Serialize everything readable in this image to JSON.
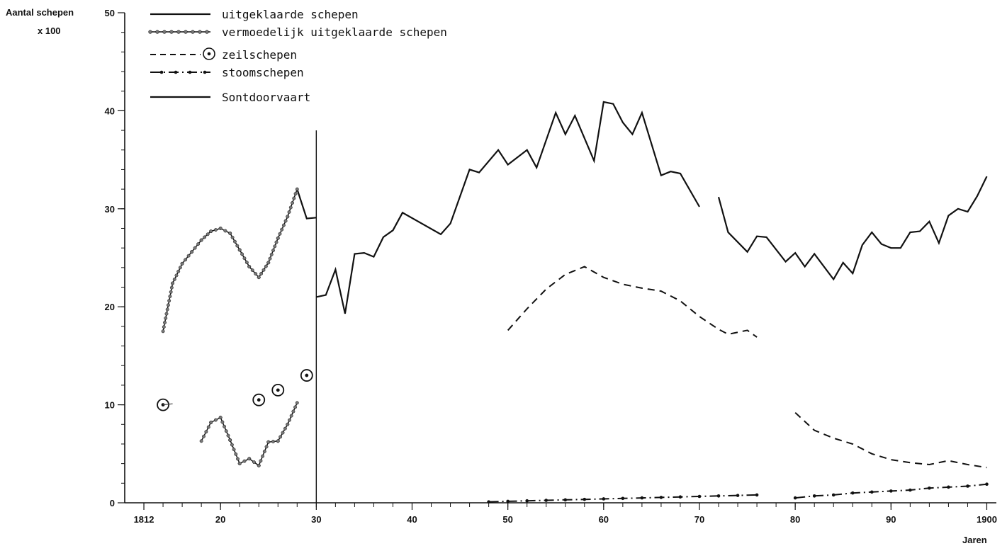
{
  "chart_data": {
    "type": "line",
    "ylabel": "Aantal schepen",
    "ylabel2": "x 100",
    "xlabel": "Jaren",
    "xlim": [
      1810,
      1901
    ],
    "ylim": [
      0,
      50
    ],
    "xticks": [
      1812,
      1820,
      1830,
      1840,
      1850,
      1860,
      1870,
      1880,
      1890,
      1900
    ],
    "xtick_labels": [
      "1812",
      "20",
      "30",
      "40",
      "50",
      "60",
      "70",
      "80",
      "90",
      "1900"
    ],
    "yticks": [
      0,
      10,
      20,
      30,
      40,
      50
    ],
    "ytick_labels": [
      "0",
      "10",
      "20",
      "30",
      "40",
      "50"
    ],
    "legend": [
      {
        "label": "uitgeklaarde schepen",
        "style": "solid"
      },
      {
        "label": "vermoedelijk uitgeklaarde schepen",
        "style": "dotted-solid"
      },
      {
        "label": "zeilschepen",
        "style": "dashed-circle"
      },
      {
        "label": "stoomschepen",
        "style": "dash-dot"
      },
      {
        "label": "Sontdoorvaart",
        "style": "solid"
      }
    ],
    "series": [
      {
        "name": "uitgeklaarde schepen",
        "style": "solid",
        "segments": [
          [
            [
              1828.0,
              32.0
            ],
            [
              1829.0,
              29.0
            ],
            [
              1830.0,
              29.1
            ]
          ],
          [
            [
              1830.0,
              21.0
            ],
            [
              1831.0,
              21.2
            ],
            [
              1832.0,
              23.8
            ],
            [
              1833.0,
              19.3
            ],
            [
              1834.0,
              25.4
            ],
            [
              1835.0,
              25.5
            ],
            [
              1836.0,
              25.1
            ],
            [
              1837.0,
              27.1
            ],
            [
              1838.0,
              27.8
            ],
            [
              1839.0,
              29.6
            ],
            [
              1843.0,
              27.4
            ],
            [
              1844.0,
              28.5
            ],
            [
              1846.0,
              34.0
            ],
            [
              1847.0,
              33.7
            ],
            [
              1849.0,
              36.0
            ],
            [
              1850.0,
              34.5
            ],
            [
              1852.0,
              36.0
            ],
            [
              1853.0,
              34.2
            ],
            [
              1855.0,
              39.8
            ],
            [
              1856.0,
              37.6
            ],
            [
              1857.0,
              39.5
            ],
            [
              1859.0,
              34.9
            ],
            [
              1860.0,
              40.9
            ],
            [
              1861.0,
              40.7
            ],
            [
              1862.0,
              38.8
            ],
            [
              1863.0,
              37.6
            ],
            [
              1864.0,
              39.8
            ],
            [
              1866.0,
              33.4
            ],
            [
              1867.0,
              33.8
            ],
            [
              1868.0,
              33.6
            ],
            [
              1870.0,
              30.2
            ]
          ],
          [
            [
              1872.0,
              31.2
            ],
            [
              1873.0,
              27.6
            ],
            [
              1875.0,
              25.6
            ],
            [
              1876.0,
              27.2
            ],
            [
              1877.0,
              27.1
            ],
            [
              1879.0,
              24.6
            ],
            [
              1880.0,
              25.5
            ],
            [
              1881.0,
              24.1
            ],
            [
              1882.0,
              25.4
            ],
            [
              1884.0,
              22.8
            ],
            [
              1885.0,
              24.5
            ],
            [
              1886.0,
              23.4
            ],
            [
              1887.0,
              26.3
            ],
            [
              1888.0,
              27.6
            ],
            [
              1889.0,
              26.4
            ],
            [
              1890.0,
              26.0
            ],
            [
              1891.0,
              26.0
            ],
            [
              1892.0,
              27.6
            ],
            [
              1893.0,
              27.7
            ],
            [
              1894.0,
              28.7
            ],
            [
              1895.0,
              26.5
            ],
            [
              1896.0,
              29.3
            ],
            [
              1897.0,
              30.0
            ],
            [
              1898.0,
              29.7
            ],
            [
              1899.0,
              31.3
            ],
            [
              1900.0,
              33.3
            ]
          ]
        ]
      },
      {
        "name": "vermoedelijk uitgeklaarde schepen",
        "style": "dotted",
        "segments": [
          [
            [
              1814.0,
              17.5
            ],
            [
              1815.0,
              22.4
            ],
            [
              1816.0,
              24.4
            ],
            [
              1817.0,
              25.6
            ],
            [
              1818.0,
              26.8
            ],
            [
              1819.0,
              27.7
            ],
            [
              1820.0,
              28.0
            ],
            [
              1821.0,
              27.5
            ],
            [
              1822.0,
              25.8
            ],
            [
              1823.0,
              24.1
            ],
            [
              1824.0,
              23.0
            ],
            [
              1825.0,
              24.5
            ],
            [
              1826.0,
              27.0
            ],
            [
              1827.0,
              29.2
            ],
            [
              1828.0,
              32.0
            ]
          ],
          [
            [
              1818.0,
              6.3
            ],
            [
              1819.0,
              8.2
            ],
            [
              1820.0,
              8.7
            ],
            [
              1821.0,
              6.4
            ],
            [
              1822.0,
              4.0
            ],
            [
              1823.0,
              4.5
            ],
            [
              1824.0,
              3.8
            ],
            [
              1825.0,
              6.2
            ],
            [
              1826.0,
              6.3
            ],
            [
              1827.0,
              8.0
            ],
            [
              1828.0,
              10.2
            ]
          ]
        ]
      },
      {
        "name": "zeilschepen",
        "style": "dashed",
        "segments": [
          [
            [
              1850.0,
              17.6
            ],
            [
              1852.0,
              19.8
            ],
            [
              1854.0,
              21.8
            ],
            [
              1856.0,
              23.3
            ],
            [
              1858.0,
              24.1
            ],
            [
              1860.0,
              23.0
            ],
            [
              1862.0,
              22.3
            ],
            [
              1864.0,
              21.9
            ],
            [
              1866.0,
              21.6
            ],
            [
              1868.0,
              20.6
            ],
            [
              1870.0,
              19.0
            ],
            [
              1872.0,
              17.7
            ],
            [
              1873.0,
              17.2
            ],
            [
              1875.0,
              17.6
            ],
            [
              1876.0,
              16.9
            ]
          ],
          [
            [
              1880.0,
              9.2
            ],
            [
              1882.0,
              7.4
            ],
            [
              1884.0,
              6.6
            ],
            [
              1886.0,
              6.0
            ],
            [
              1888.0,
              5.0
            ],
            [
              1890.0,
              4.4
            ],
            [
              1892.0,
              4.1
            ],
            [
              1894.0,
              3.9
            ],
            [
              1896.0,
              4.3
            ],
            [
              1898.0,
              3.9
            ],
            [
              1900.0,
              3.6
            ]
          ]
        ]
      },
      {
        "name": "zeilschepen (los)",
        "style": "circle",
        "points": [
          [
            1814.0,
            10.0
          ],
          [
            1824.0,
            10.5
          ],
          [
            1826.0,
            11.5
          ],
          [
            1829.0,
            13.0
          ]
        ]
      },
      {
        "name": "stoomschepen",
        "style": "dash-dot",
        "segments": [
          [
            [
              1848.0,
              0.1
            ],
            [
              1850.0,
              0.15
            ],
            [
              1852.0,
              0.2
            ],
            [
              1854.0,
              0.25
            ],
            [
              1856.0,
              0.3
            ],
            [
              1858.0,
              0.35
            ],
            [
              1860.0,
              0.4
            ],
            [
              1862.0,
              0.45
            ],
            [
              1864.0,
              0.5
            ],
            [
              1866.0,
              0.55
            ],
            [
              1868.0,
              0.6
            ],
            [
              1870.0,
              0.65
            ],
            [
              1872.0,
              0.7
            ],
            [
              1874.0,
              0.75
            ],
            [
              1876.0,
              0.8
            ]
          ],
          [
            [
              1880.0,
              0.5
            ],
            [
              1882.0,
              0.7
            ],
            [
              1884.0,
              0.8
            ],
            [
              1886.0,
              1.0
            ],
            [
              1888.0,
              1.1
            ],
            [
              1890.0,
              1.2
            ],
            [
              1892.0,
              1.3
            ],
            [
              1894.0,
              1.5
            ],
            [
              1896.0,
              1.6
            ],
            [
              1898.0,
              1.7
            ],
            [
              1900.0,
              1.9
            ]
          ]
        ]
      },
      {
        "name": "Sontdoorvaart",
        "style": "solid",
        "segments": [
          [
            [
              1814.0,
              10.0
            ],
            [
              1815.0,
              10.1
            ]
          ]
        ]
      }
    ]
  }
}
